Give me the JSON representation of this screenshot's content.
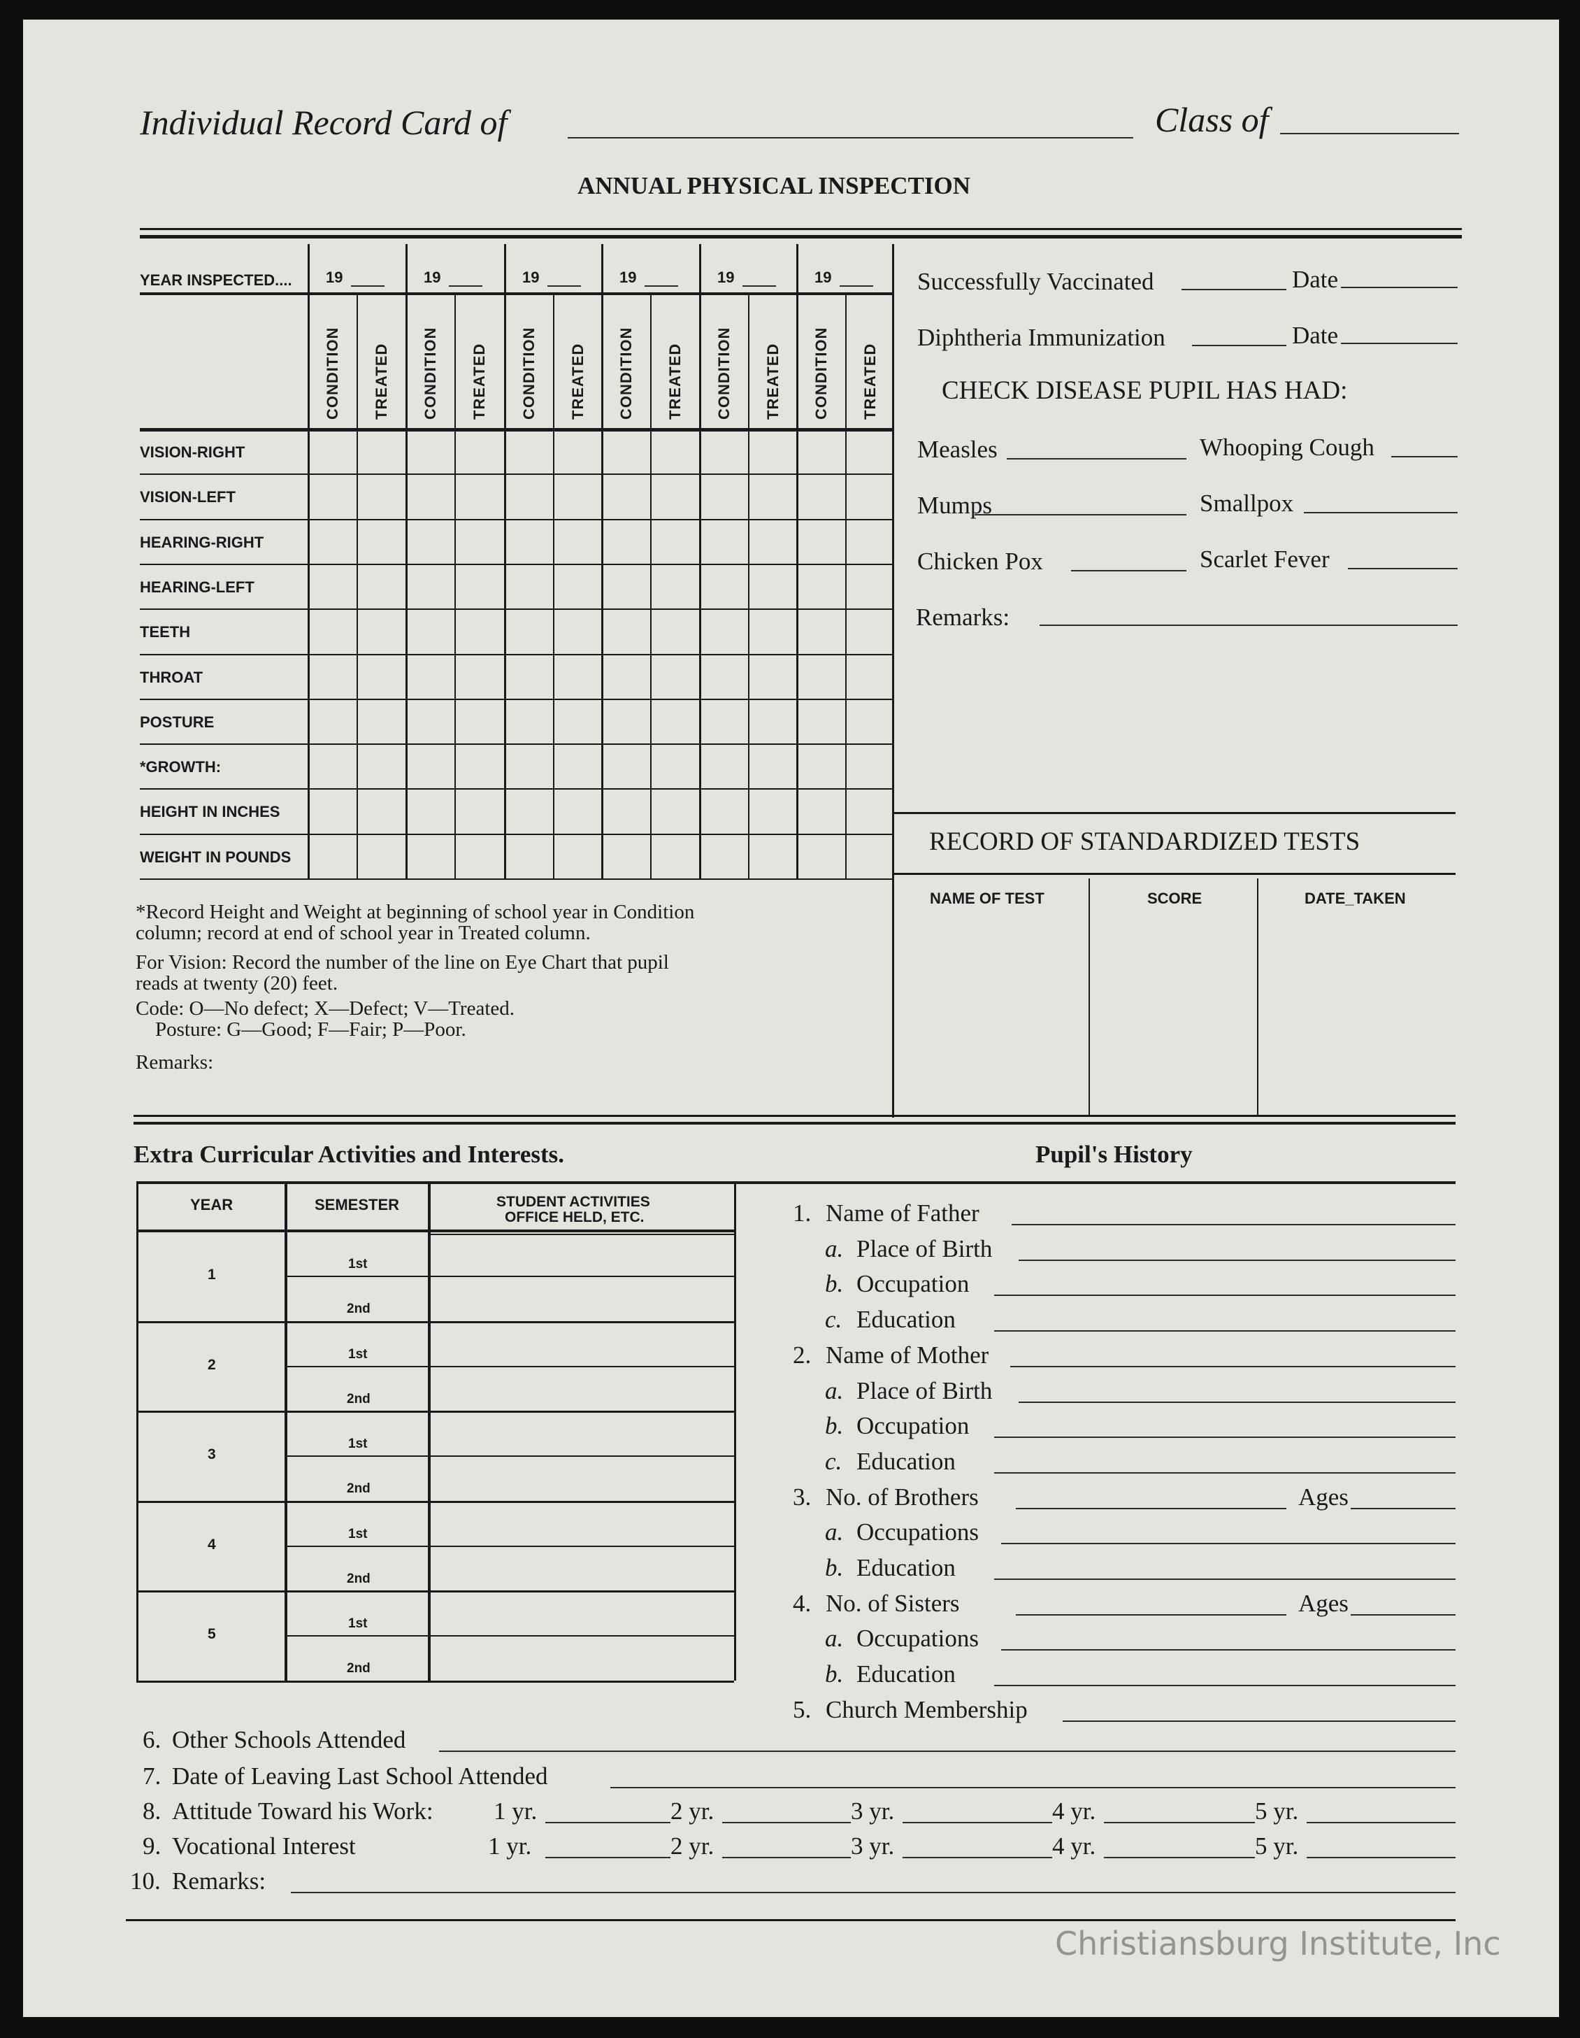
{
  "header": {
    "title_prefix": "Individual Record Card of",
    "class_label": "Class of",
    "subtitle": "ANNUAL PHYSICAL INSPECTION"
  },
  "inspection": {
    "year_label": "YEAR INSPECTED....",
    "years": [
      "19",
      "19",
      "19",
      "19",
      "19",
      "19"
    ],
    "subcolumns": [
      "CONDITION",
      "TREATED"
    ],
    "rows": [
      "VISION-RIGHT",
      "VISION-LEFT",
      "HEARING-RIGHT",
      "HEARING-LEFT",
      "TEETH",
      "THROAT",
      "POSTURE",
      "*GROWTH:",
      "HEIGHT IN INCHES",
      "WEIGHT IN POUNDS"
    ],
    "notes": [
      "*Record Height and Weight at beginning of school year in Condition",
      "column; record at end of school year in Treated column.",
      "For Vision: Record the number of the line on Eye Chart that pupil",
      "reads at twenty (20) feet.",
      "Code: O—No defect; X—Defect; V—Treated.",
      "Posture: G—Good; F—Fair; P—Poor.",
      "Remarks:"
    ]
  },
  "immunization": {
    "vaccinated": "Successfully Vaccinated",
    "diphtheria": "Diphtheria Immunization",
    "date_label": "Date",
    "disease_heading": "CHECK DISEASE PUPIL HAS HAD:",
    "diseases": [
      "Measles",
      "Whooping Cough",
      "Mumps",
      "Smallpox",
      "Chicken Pox",
      "Scarlet Fever"
    ],
    "remarks": "Remarks:"
  },
  "tests": {
    "title": "RECORD OF STANDARDIZED TESTS",
    "columns": [
      "NAME OF TEST",
      "SCORE",
      "DATE_TAKEN"
    ]
  },
  "activities": {
    "title": "Extra Curricular Activities and Interests.",
    "columns": [
      "YEAR",
      "SEMESTER",
      "STUDENT ACTIVITIES",
      "OFFICE HELD, ETC."
    ],
    "years": [
      "1",
      "2",
      "3",
      "4",
      "5"
    ],
    "semesters": [
      "1st",
      "2nd"
    ]
  },
  "history": {
    "title": "Pupil's History",
    "ages_label": "Ages",
    "items": [
      {
        "num": "1.",
        "label": "Name of Father"
      },
      {
        "num": "a.",
        "label": "Place of Birth"
      },
      {
        "num": "b.",
        "label": "Occupation"
      },
      {
        "num": "c.",
        "label": "Education"
      },
      {
        "num": "2.",
        "label": "Name of Mother"
      },
      {
        "num": "a.",
        "label": "Place of Birth"
      },
      {
        "num": "b.",
        "label": "Occupation"
      },
      {
        "num": "c.",
        "label": "Education"
      },
      {
        "num": "3.",
        "label": "No. of Brothers"
      },
      {
        "num": "a.",
        "label": "Occupations"
      },
      {
        "num": "b.",
        "label": "Education"
      },
      {
        "num": "4.",
        "label": "No. of Sisters"
      },
      {
        "num": "a.",
        "label": "Occupations"
      },
      {
        "num": "b.",
        "label": "Education"
      },
      {
        "num": "5.",
        "label": "Church Membership"
      }
    ]
  },
  "bottom": {
    "items": [
      {
        "num": "6.",
        "label": "Other Schools Attended"
      },
      {
        "num": "7.",
        "label": "Date of Leaving Last School Attended"
      },
      {
        "num": "8.",
        "label": "Attitude Toward his Work:"
      },
      {
        "num": "9.",
        "label": "Vocational Interest"
      },
      {
        "num": "10.",
        "label": "Remarks:"
      }
    ],
    "year_labels": [
      "1 yr.",
      "2 yr.",
      "3 yr.",
      "4 yr.",
      "5 yr."
    ]
  },
  "watermark": "Christiansburg Institute, Inc"
}
